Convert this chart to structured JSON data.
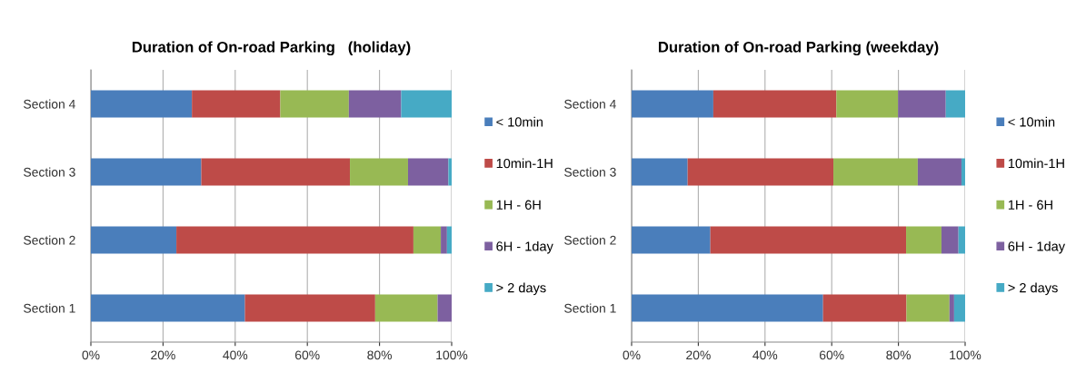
{
  "chart_data": [
    {
      "type": "bar",
      "title": "Duration of On-road Parking   (holiday)",
      "orientation": "horizontal",
      "stacked": true,
      "categories": [
        "Section 4",
        "Section 3",
        "Section 2",
        "Section 1"
      ],
      "series": [
        {
          "name": "< 10min",
          "color": "#4a7ebb",
          "values": [
            28,
            30.6,
            23.7,
            42.7
          ]
        },
        {
          "name": "10min-1H",
          "color": "#be4b48",
          "values": [
            24.5,
            41.2,
            65.7,
            36.1
          ]
        },
        {
          "name": "1H - 6H",
          "color": "#98b954",
          "values": [
            19,
            16.1,
            7.6,
            17.3
          ]
        },
        {
          "name": "6H - 1day",
          "color": "#7d60a0",
          "values": [
            14.5,
            11.2,
            1.7,
            3.9
          ]
        },
        {
          "name": "> 2 days",
          "color": "#46aac5",
          "values": [
            14,
            0.9,
            1.3,
            0
          ]
        }
      ],
      "xlim": [
        0,
        100
      ],
      "xticks": [
        {
          "value": 0,
          "label": "0%"
        },
        {
          "value": 20,
          "label": "20%"
        },
        {
          "value": 40,
          "label": "40%"
        },
        {
          "value": 60,
          "label": "60%"
        },
        {
          "value": 80,
          "label": "80%"
        },
        {
          "value": 100,
          "label": "100%"
        }
      ],
      "grid": "x",
      "legend": "right"
    },
    {
      "type": "bar",
      "title": "Duration of On-road Parking (weekday)",
      "orientation": "horizontal",
      "stacked": true,
      "categories": [
        "Section 4",
        "Section 3",
        "Section 2",
        "Section 1"
      ],
      "series": [
        {
          "name": "< 10min",
          "color": "#4a7ebb",
          "values": [
            24.5,
            16.8,
            23.6,
            57.4
          ]
        },
        {
          "name": "10min-1H",
          "color": "#be4b48",
          "values": [
            36.9,
            43.7,
            58.7,
            25.0
          ]
        },
        {
          "name": "1H - 6H",
          "color": "#98b954",
          "values": [
            18.5,
            25.3,
            10.6,
            12.9
          ]
        },
        {
          "name": "6H - 1day",
          "color": "#7d60a0",
          "values": [
            14.3,
            13.1,
            5.1,
            1.4
          ]
        },
        {
          "name": "> 2 days",
          "color": "#46aac5",
          "values": [
            5.8,
            1.1,
            2.0,
            3.3
          ]
        }
      ],
      "xlim": [
        0,
        100
      ],
      "xticks": [
        {
          "value": 0,
          "label": "0%"
        },
        {
          "value": 20,
          "label": "20%"
        },
        {
          "value": 40,
          "label": "40%"
        },
        {
          "value": 60,
          "label": "60%"
        },
        {
          "value": 80,
          "label": "80%"
        },
        {
          "value": 100,
          "label": "100%"
        }
      ],
      "grid": "x",
      "legend": "right"
    }
  ]
}
